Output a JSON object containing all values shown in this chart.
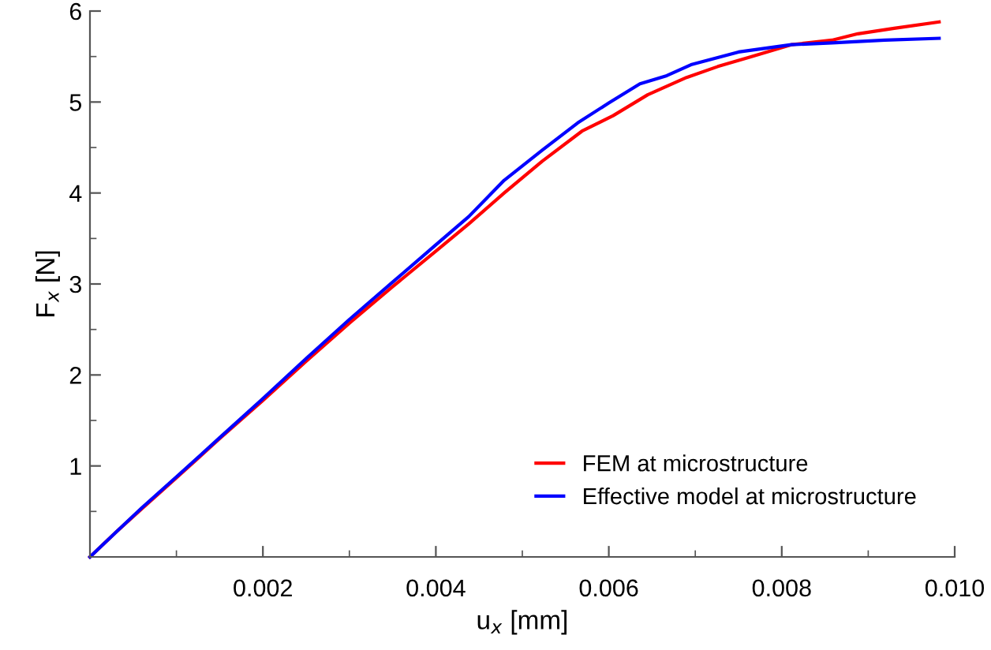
{
  "chart_data": {
    "type": "line",
    "xlabel": "u$_{x}$ [mm]",
    "ylabel": "F$_{x}$ [N]",
    "xlim": [
      0,
      0.01
    ],
    "ylim": [
      0,
      6
    ],
    "xticks": [
      0.002,
      0.004,
      0.006,
      0.008,
      {
        "value": 0.01,
        "label": "0.010"
      }
    ],
    "yticks": [
      1,
      2,
      3,
      4,
      5,
      6
    ],
    "grid": false,
    "legend": "bottom right",
    "line_style": "solid",
    "marker": "none",
    "series": [
      {
        "name": "FEM at microstructure",
        "color": "#ff0000",
        "x": [
          0,
          0.0003,
          0.0006,
          0.001,
          0.0015,
          0.002,
          0.0025,
          0.003,
          0.0035,
          0.004,
          0.00438,
          0.00479,
          0.00523,
          0.00569,
          0.00605,
          0.00645,
          0.0069,
          0.00726,
          0.00762,
          0.00811,
          0.00858,
          0.00888,
          0.0093,
          0.00982
        ],
        "values": [
          0,
          0.27,
          0.53,
          0.87,
          1.3,
          1.72,
          2.15,
          2.57,
          2.97,
          3.36,
          3.66,
          4.0,
          4.35,
          4.68,
          4.85,
          5.08,
          5.27,
          5.39,
          5.49,
          5.63,
          5.68,
          5.75,
          5.81,
          5.88
        ]
      },
      {
        "name": "Effective model at microstructure",
        "color": "#0000ff",
        "x": [
          0,
          0.0003,
          0.0006,
          0.001,
          0.0015,
          0.002,
          0.0025,
          0.003,
          0.0035,
          0.004,
          0.00438,
          0.00479,
          0.00523,
          0.00564,
          0.006,
          0.00636,
          0.00667,
          0.00695,
          0.0075,
          0.00811,
          0.00858,
          0.00919,
          0.00982
        ],
        "values": [
          0,
          0.27,
          0.54,
          0.88,
          1.31,
          1.74,
          2.18,
          2.61,
          3.02,
          3.43,
          3.74,
          4.14,
          4.47,
          4.77,
          4.99,
          5.2,
          5.29,
          5.41,
          5.55,
          5.63,
          5.65,
          5.68,
          5.7
        ]
      }
    ]
  }
}
